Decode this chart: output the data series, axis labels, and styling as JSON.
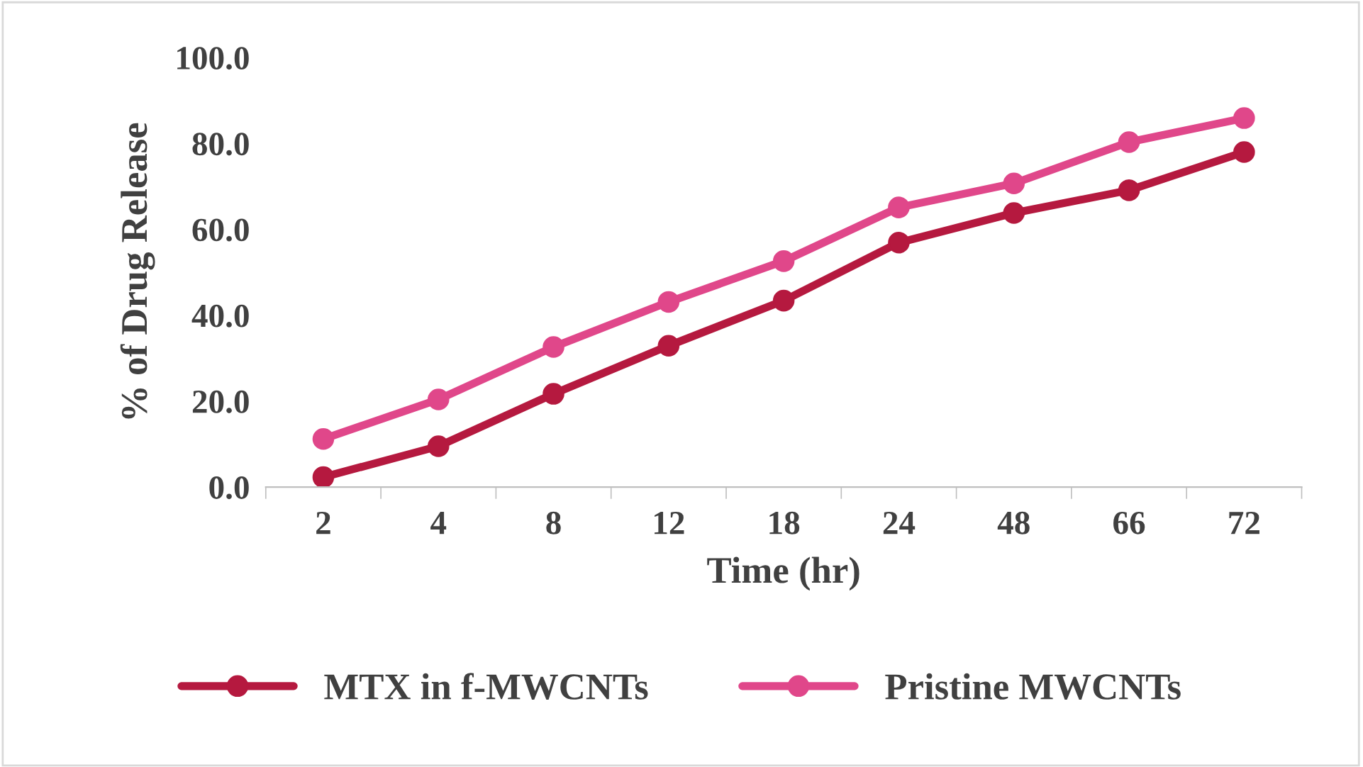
{
  "chart_data": {
    "type": "line",
    "xlabel": "Time (hr)",
    "ylabel": "% of Drug Release",
    "categories": [
      "2",
      "4",
      "8",
      "12",
      "18",
      "24",
      "48",
      "66",
      "72"
    ],
    "series": [
      {
        "name": "MTX in f-MWCNTs",
        "color": "#b5193f",
        "values": [
          2.3,
          9.5,
          21.7,
          32.9,
          43.4,
          56.9,
          63.8,
          69.1,
          78.0
        ]
      },
      {
        "name": "Pristine MWCNTs",
        "color": "#e0478a",
        "values": [
          11.2,
          20.4,
          32.6,
          43.1,
          52.6,
          65.1,
          70.7,
          80.3,
          85.9
        ]
      }
    ],
    "ylim": [
      0,
      100
    ],
    "yticks": [
      {
        "value": 0,
        "label": "0.0"
      },
      {
        "value": 20,
        "label": "20.0"
      },
      {
        "value": 40,
        "label": "40.0"
      },
      {
        "value": 60,
        "label": "60.0"
      },
      {
        "value": 80,
        "label": "80.0"
      },
      {
        "value": 100,
        "label": "100.0"
      }
    ],
    "grid": false,
    "legend": "bottom",
    "marker": "circle",
    "line_style": "solid"
  }
}
